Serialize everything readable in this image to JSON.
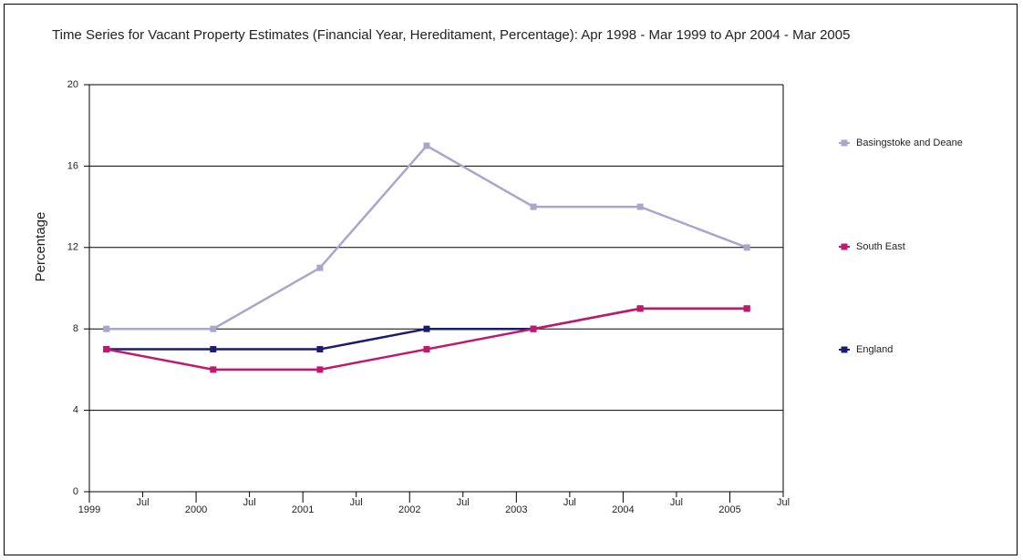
{
  "chart_data": {
    "type": "line",
    "title": "Time Series for Vacant Property Estimates (Financial Year, Hereditament, Percentage): Apr 1998 - Mar 1999 to Apr 2004 - Mar 2005",
    "y_label": "Percentage",
    "x": [
      1999.16,
      2000.16,
      2001.16,
      2002.16,
      2003.16,
      2004.16,
      2005.16
    ],
    "xlim": [
      1999,
      2005.5
    ],
    "xticks": [
      {
        "value": 1999,
        "label": "1999"
      },
      {
        "value": 1999.5,
        "label": "Jul"
      },
      {
        "value": 2000,
        "label": "2000"
      },
      {
        "value": 2000.5,
        "label": "Jul"
      },
      {
        "value": 2001,
        "label": "2001"
      },
      {
        "value": 2001.5,
        "label": "Jul"
      },
      {
        "value": 2002,
        "label": "2002"
      },
      {
        "value": 2002.5,
        "label": "Jul"
      },
      {
        "value": 2003,
        "label": "2003"
      },
      {
        "value": 2003.5,
        "label": "Jul"
      },
      {
        "value": 2004,
        "label": "2004"
      },
      {
        "value": 2004.5,
        "label": "Jul"
      },
      {
        "value": 2005,
        "label": "2005"
      },
      {
        "value": 2005.5,
        "label": "Jul"
      }
    ],
    "ylim": [
      0,
      20
    ],
    "yticks": [
      0,
      4,
      8,
      12,
      16,
      20
    ],
    "grid": true,
    "legend": "right",
    "series": [
      {
        "name": "Basingstoke and Deane",
        "color": "#a8a6cc",
        "values": [
          8,
          8,
          11,
          17,
          14,
          14,
          12
        ]
      },
      {
        "name": "South East",
        "color": "#c0186c",
        "values": [
          7,
          6,
          6,
          7,
          8,
          9,
          9
        ]
      },
      {
        "name": "England",
        "color": "#1c1c6e",
        "values": [
          7,
          7,
          7,
          8,
          8,
          9,
          9
        ]
      }
    ]
  }
}
